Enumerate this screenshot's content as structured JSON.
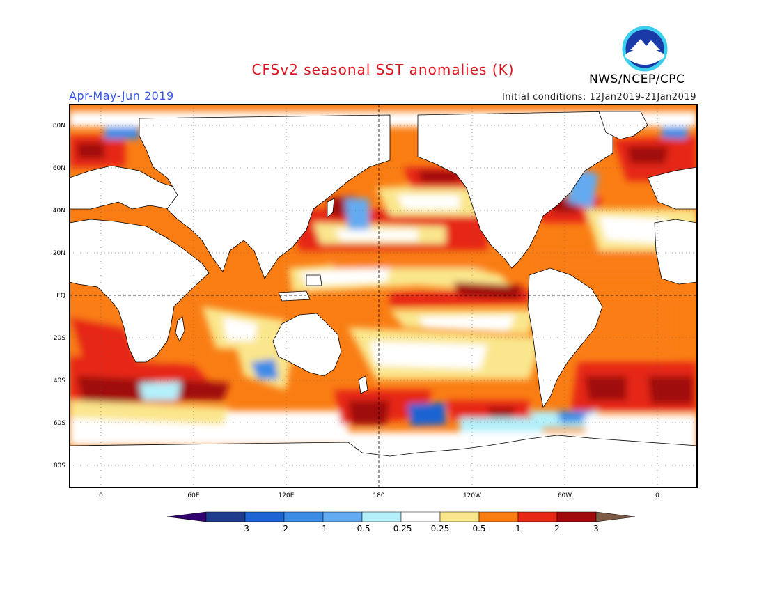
{
  "header": {
    "title": "CFSv2 seasonal SST anomalies (K)",
    "season": "Apr-May-Jun 2019",
    "initial_conditions": "Initial conditions: 12Jan2019-21Jan2019",
    "agency": "NWS/NCEP/CPC",
    "logo_text": "NOAA"
  },
  "colors": {
    "title": "#e0141e",
    "season": "#3355ee",
    "frame": "#000000",
    "land": "#ffffff",
    "coast": "#000000"
  },
  "axes": {
    "lat_ticks": [
      "80N",
      "60N",
      "40N",
      "20N",
      "EQ",
      "20S",
      "40S",
      "60S",
      "80S"
    ],
    "lon_ticks": [
      "0",
      "60E",
      "120E",
      "180",
      "120W",
      "60W",
      "0"
    ]
  },
  "colorbar": {
    "labels": [
      "-3",
      "-2",
      "-1",
      "-0.5",
      "-0.25",
      "0.25",
      "0.5",
      "1",
      "2",
      "3"
    ],
    "colors": [
      "#1e3c8c",
      "#1e64d2",
      "#3c8ce6",
      "#64aaf0",
      "#b4f0fa",
      "#ffffff",
      "#fae68c",
      "#fa7d14",
      "#e62814",
      "#a00a0a"
    ],
    "low_end_color": "#32006e",
    "high_end_color": "#7d5a46"
  },
  "map": {
    "projection": "cylindrical equidistant",
    "lon_range_deg": [
      -20,
      380
    ],
    "lat_range_deg": [
      -90,
      90
    ],
    "grid": "dotted"
  }
}
